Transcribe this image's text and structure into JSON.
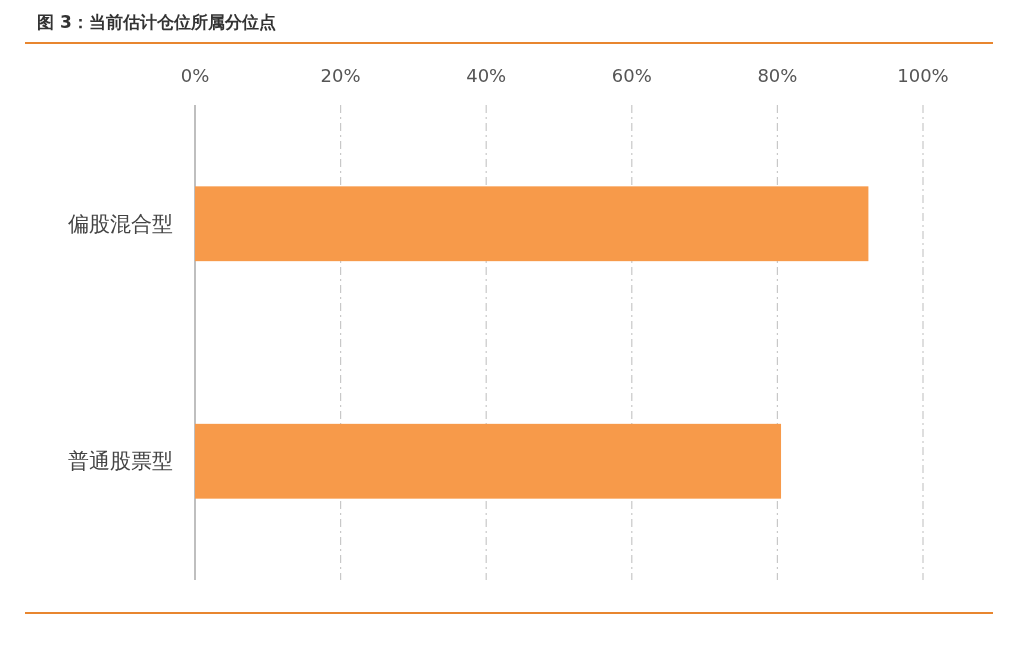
{
  "chart_data": {
    "type": "bar",
    "orientation": "horizontal",
    "title": "图 3：当前估计仓位所属分位点",
    "categories": [
      "偏股混合型",
      "普通股票型"
    ],
    "values": [
      92.5,
      80.5
    ],
    "color": "#f79a4a",
    "xlim": [
      0,
      100
    ],
    "xticks": [
      {
        "value": 0,
        "label": "0%"
      },
      {
        "value": 20,
        "label": "20%"
      },
      {
        "value": 40,
        "label": "40%"
      },
      {
        "value": 60,
        "label": "60%"
      },
      {
        "value": 80,
        "label": "80%"
      },
      {
        "value": 100,
        "label": "100%"
      }
    ],
    "grid": "x"
  }
}
